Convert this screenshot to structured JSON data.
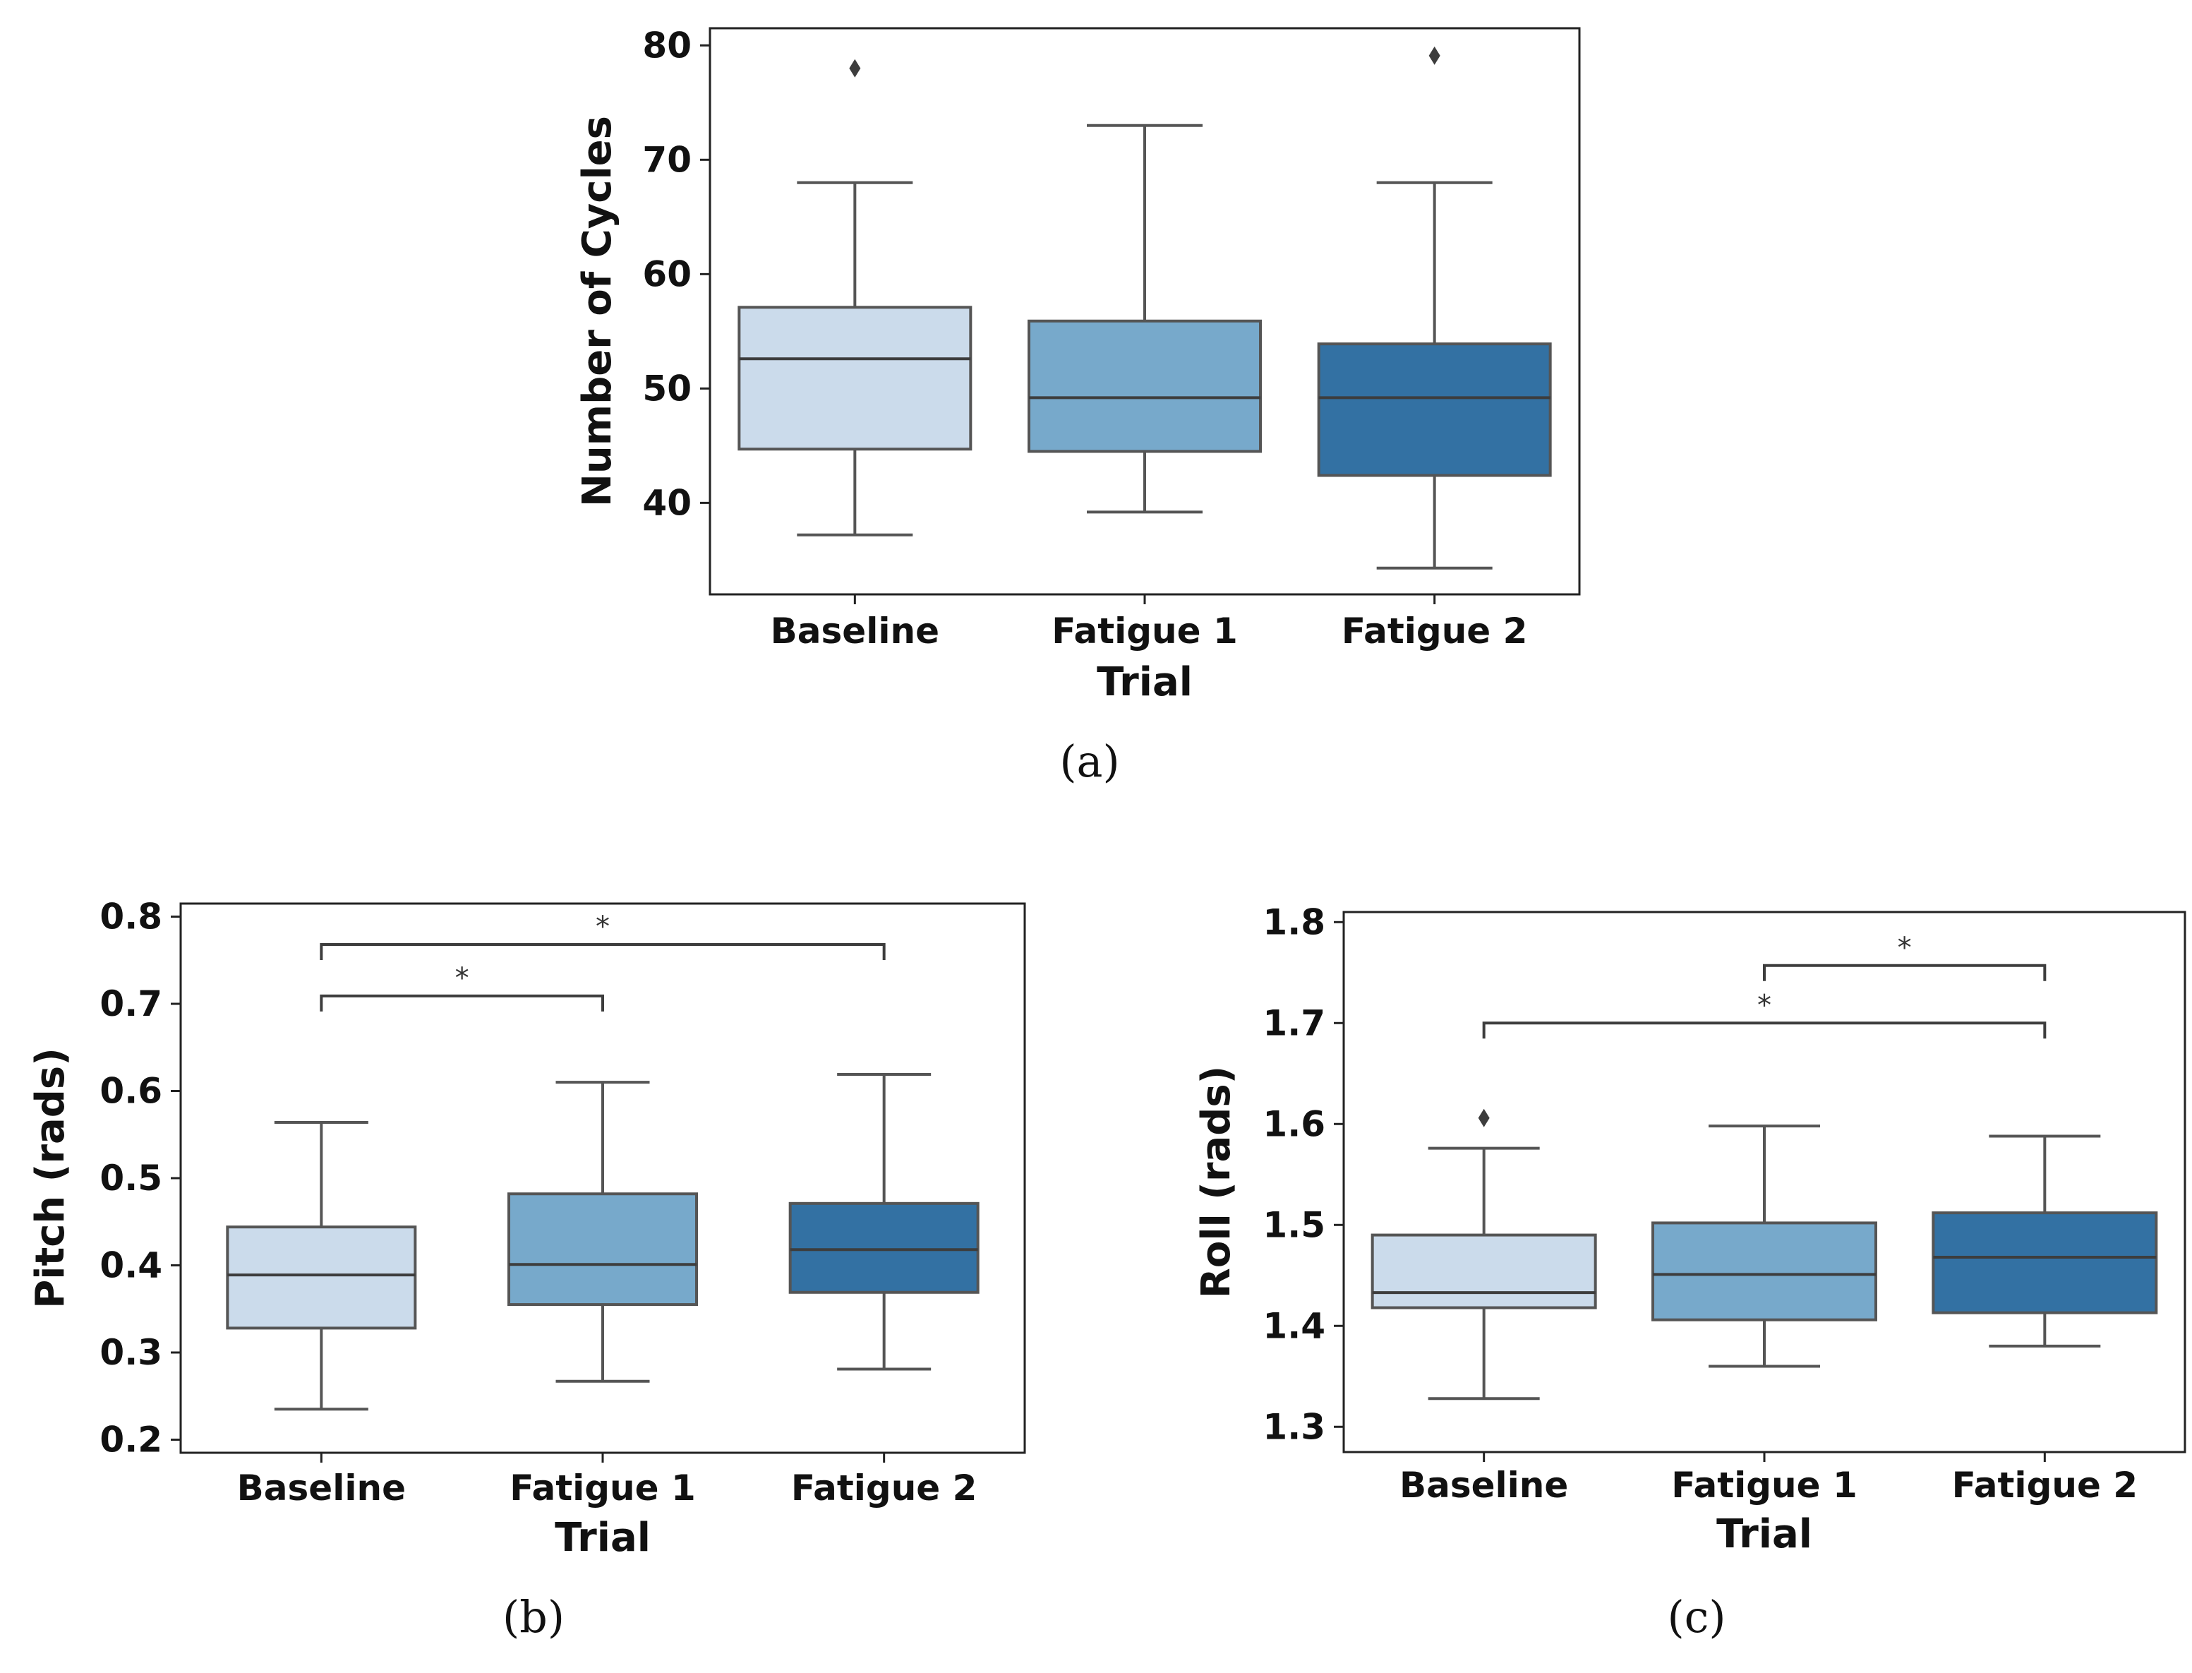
{
  "colors": {
    "baseline": "#cbdbeb",
    "fatigue1": "#77a9cb",
    "fatigue2": "#3371a3",
    "box_edge": "#555555",
    "median": "#3d3d3d",
    "axes": "#222222"
  },
  "chart_data": [
    {
      "type": "box",
      "caption": "(a)",
      "xlabel": "Trial",
      "ylabel": "Number of Cycles",
      "ylim": [
        32,
        81.5
      ],
      "yticks": [
        "40",
        "50",
        "60",
        "70",
        "80"
      ],
      "categories": [
        "Baseline",
        "Fatigue 1",
        "Fatigue 2"
      ],
      "boxes": [
        {
          "whisker_low": 37.2,
          "q1": 44.7,
          "median": 52.6,
          "q3": 57.1,
          "whisker_high": 68.0,
          "outliers": [
            78.0
          ]
        },
        {
          "whisker_low": 39.2,
          "q1": 44.5,
          "median": 49.2,
          "q3": 55.9,
          "whisker_high": 73.0,
          "outliers": []
        },
        {
          "whisker_low": 34.3,
          "q1": 42.4,
          "median": 49.2,
          "q3": 53.9,
          "whisker_high": 68.0,
          "outliers": [
            79.1
          ]
        }
      ],
      "significance": []
    },
    {
      "type": "box",
      "caption": "(b)",
      "xlabel": "Trial",
      "ylabel": "Pitch (rads)",
      "ylim": [
        0.185,
        0.815
      ],
      "yticks": [
        "0.2",
        "0.3",
        "0.4",
        "0.5",
        "0.6",
        "0.7",
        "0.8"
      ],
      "categories": [
        "Baseline",
        "Fatigue 1",
        "Fatigue 2"
      ],
      "boxes": [
        {
          "whisker_low": 0.235,
          "q1": 0.328,
          "median": 0.389,
          "q3": 0.444,
          "whisker_high": 0.564,
          "outliers": []
        },
        {
          "whisker_low": 0.267,
          "q1": 0.355,
          "median": 0.401,
          "q3": 0.482,
          "whisker_high": 0.61,
          "outliers": []
        },
        {
          "whisker_low": 0.281,
          "q1": 0.369,
          "median": 0.418,
          "q3": 0.471,
          "whisker_high": 0.619,
          "outliers": []
        }
      ],
      "significance": [
        {
          "from": 0,
          "to": 1,
          "y": 0.709,
          "label": "*"
        },
        {
          "from": 0,
          "to": 2,
          "y": 0.768,
          "label": "*"
        }
      ]
    },
    {
      "type": "box",
      "caption": "(c)",
      "xlabel": "Trial",
      "ylabel": "Roll (rads)",
      "ylim": [
        1.275,
        1.81
      ],
      "yticks": [
        "1.3",
        "1.4",
        "1.5",
        "1.6",
        "1.7",
        "1.8"
      ],
      "categories": [
        "Baseline",
        "Fatigue 1",
        "Fatigue 2"
      ],
      "boxes": [
        {
          "whisker_low": 1.328,
          "q1": 1.418,
          "median": 1.433,
          "q3": 1.49,
          "whisker_high": 1.576,
          "outliers": [
            1.606
          ]
        },
        {
          "whisker_low": 1.36,
          "q1": 1.406,
          "median": 1.451,
          "q3": 1.502,
          "whisker_high": 1.598,
          "outliers": []
        },
        {
          "whisker_low": 1.38,
          "q1": 1.413,
          "median": 1.468,
          "q3": 1.512,
          "whisker_high": 1.588,
          "outliers": []
        }
      ],
      "significance": [
        {
          "from": 0,
          "to": 2,
          "y": 1.7,
          "label": "*"
        },
        {
          "from": 1,
          "to": 2,
          "y": 1.757,
          "label": "*"
        }
      ]
    }
  ]
}
